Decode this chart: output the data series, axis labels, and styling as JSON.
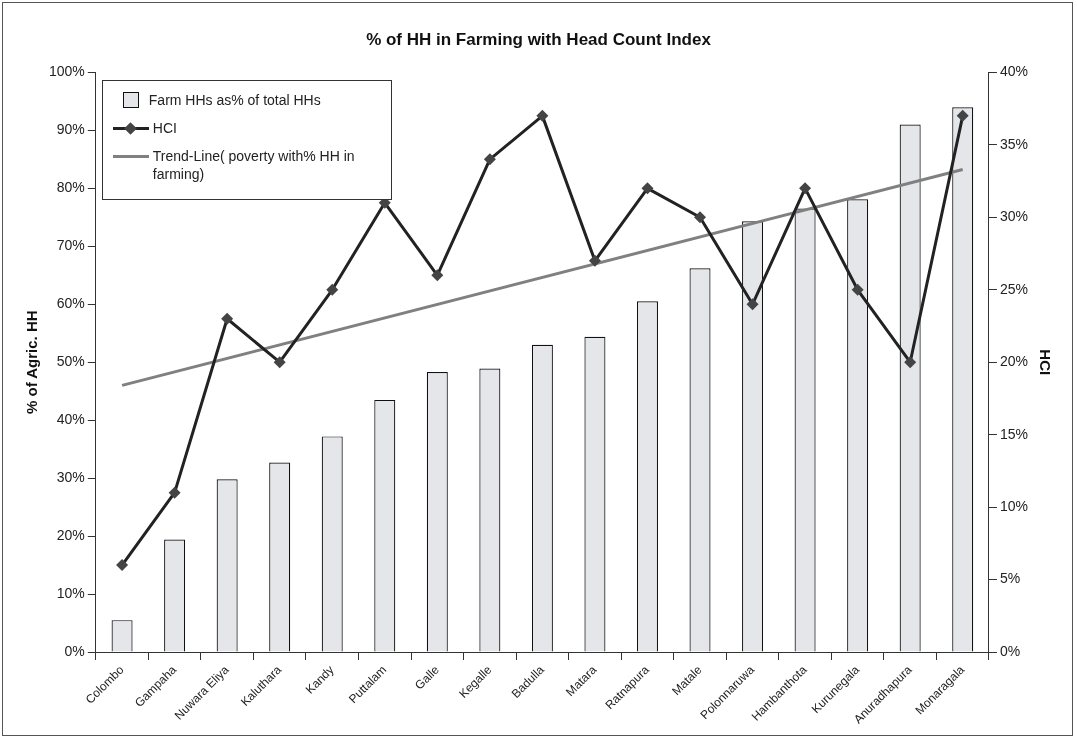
{
  "chart_data": {
    "type": "bar",
    "title": "% of HH in Farming with Head Count Index",
    "xlabel": null,
    "ylabel": "% of Agric. HH",
    "y2label": "HCI",
    "categories": [
      "Colombo",
      "Gampaha",
      "Nuwara Eliya",
      "Kaluthara",
      "Kandy",
      "Puttalam",
      "Galle",
      "Kegalle",
      "Badulla",
      "Matara",
      "Ratnapura",
      "Matale",
      "Polonnaruwa",
      "Hambanthota",
      "Kurunegala",
      "Anuradhapura",
      "Monaragala"
    ],
    "series": [
      {
        "name": "Farm HHs as% of total HHs",
        "color": "#e4e6ea",
        "values": [
          5.5,
          19.4,
          29.8,
          32.7,
          37.2,
          43.5,
          48.3,
          48.9,
          53,
          54.4,
          60.5,
          66.2,
          74.3,
          76.5,
          78.1,
          91,
          94
        ]
      },
      {
        "name": "HCI",
        "type": "line",
        "axis": "y2",
        "color": "#222222",
        "marker": "diamond",
        "values": [
          6,
          11,
          23,
          20,
          25,
          31,
          26,
          34,
          37,
          27,
          32,
          30,
          24,
          32,
          25,
          20,
          37
        ]
      },
      {
        "name": "Trend-Line( poverty with% HH in farming)",
        "type": "line",
        "axis": "y2",
        "color": "#808080",
        "marker": "none",
        "values": [
          18.4,
          null,
          null,
          null,
          null,
          null,
          null,
          null,
          null,
          null,
          null,
          null,
          null,
          null,
          null,
          null,
          33.3
        ]
      }
    ],
    "ylim": [
      0,
      100
    ],
    "yticks": [
      {
        "value": 0,
        "label": "0%"
      },
      {
        "value": 10,
        "label": "10%"
      },
      {
        "value": 20,
        "label": "20%"
      },
      {
        "value": 30,
        "label": "30%"
      },
      {
        "value": 40,
        "label": "40%"
      },
      {
        "value": 50,
        "label": "50%"
      },
      {
        "value": 60,
        "label": "60%"
      },
      {
        "value": 70,
        "label": "70%"
      },
      {
        "value": 80,
        "label": "80%"
      },
      {
        "value": 90,
        "label": "90%"
      },
      {
        "value": 100,
        "label": "100%"
      }
    ],
    "y2lim": [
      0,
      40
    ],
    "y2ticks": [
      {
        "value": 0,
        "label": "0%"
      },
      {
        "value": 5,
        "label": "5%"
      },
      {
        "value": 10,
        "label": "10%"
      },
      {
        "value": 15,
        "label": "15%"
      },
      {
        "value": 20,
        "label": "20%"
      },
      {
        "value": 25,
        "label": "25%"
      },
      {
        "value": 30,
        "label": "30%"
      },
      {
        "value": 35,
        "label": "35%"
      },
      {
        "value": 40,
        "label": "40%"
      }
    ],
    "grid": false,
    "legend": "top left"
  }
}
